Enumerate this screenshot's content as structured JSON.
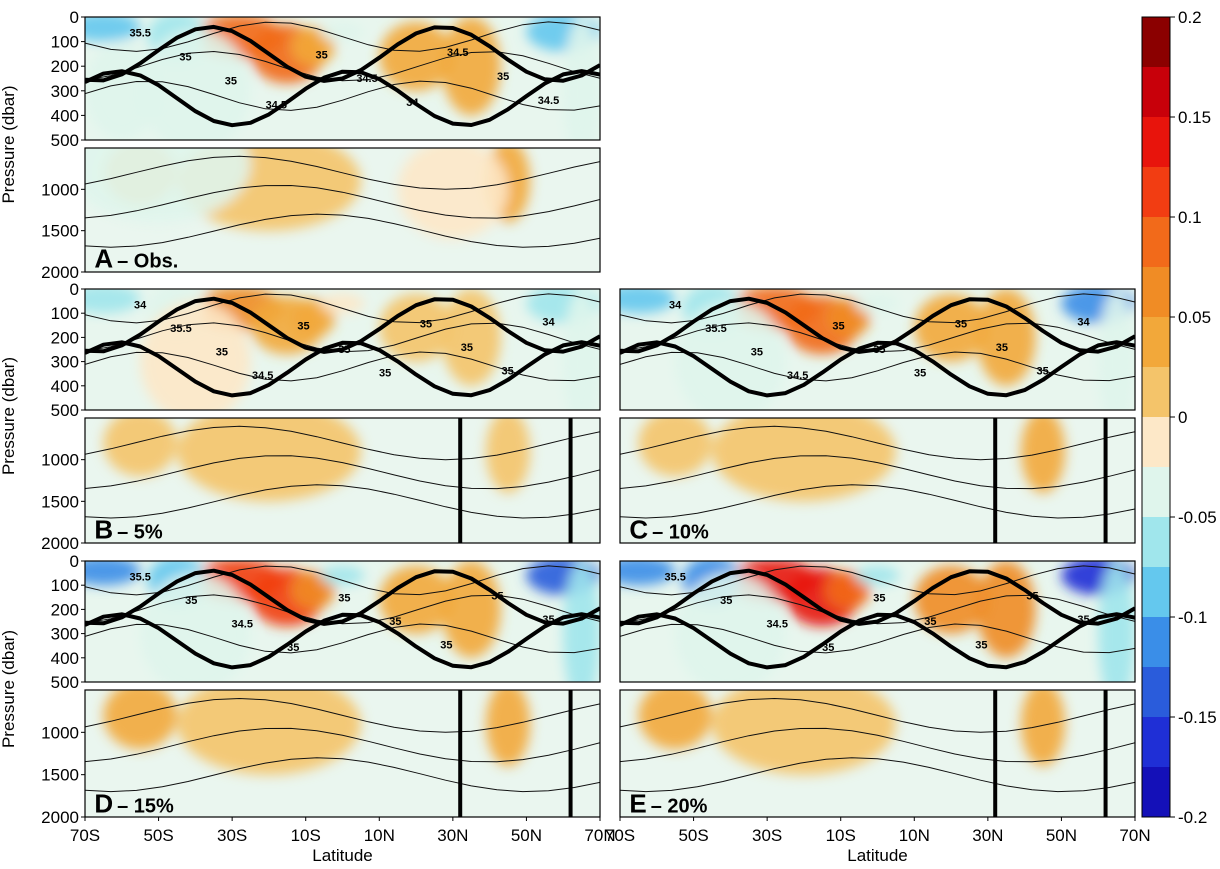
{
  "chart_data": {
    "type": "heatmap",
    "xlabel": "Latitude",
    "ylabel": "Pressure (dbar)",
    "x_ticks": [
      "70S",
      "50S",
      "30S",
      "10S",
      "10N",
      "30N",
      "50N",
      "70N"
    ],
    "y_ticks_upper": [
      "0",
      "100",
      "200",
      "300",
      "400"
    ],
    "y_ticks_lower": [
      "500",
      "1000",
      "1500",
      "2000"
    ],
    "xlim": [
      "70S",
      "70N"
    ],
    "ylim_upper": [
      0,
      500
    ],
    "ylim_lower": [
      500,
      2000
    ],
    "colorbar": {
      "range": [
        -0.2,
        0.2
      ],
      "step": 0.025,
      "tick_labels": [
        "0.2",
        "0.15",
        "0.1",
        "0.05",
        "0",
        "-0.05",
        "-0.1",
        "-0.15",
        "-0.2"
      ],
      "colors": [
        "#8b0000",
        "#c8000a",
        "#e8140c",
        "#f23d12",
        "#f26a1a",
        "#f08c25",
        "#f2a83a",
        "#f4c46a",
        "#fde8c8",
        "#dff5ec",
        "#a0e6ec",
        "#64c8ee",
        "#3a8ee8",
        "#2a5cdb",
        "#1f2fd6",
        "#1410b8"
      ]
    },
    "contour_labels": {
      "A": [
        "35.5",
        "35",
        "35",
        "34.5",
        "35",
        "34.5",
        "34",
        "34.5",
        "35",
        "34.5"
      ],
      "B": [
        "34",
        "35.5",
        "35",
        "34.5",
        "35",
        "35",
        "35",
        "35",
        "35",
        "35",
        "34"
      ],
      "C": [
        "34",
        "35.5",
        "35",
        "34.5",
        "35",
        "35",
        "35",
        "35",
        "35",
        "35",
        "34"
      ],
      "D": [
        "35.5",
        "35",
        "34.5",
        "35",
        "35",
        "35",
        "35",
        "35",
        "35"
      ],
      "E": [
        "35.5",
        "35",
        "34.5",
        "35",
        "35",
        "35",
        "35",
        "35",
        "35"
      ]
    },
    "panels": [
      {
        "id": "A",
        "label": "A",
        "suffix": "– Obs."
      },
      {
        "id": "B",
        "label": "B",
        "suffix": "– 5%"
      },
      {
        "id": "C",
        "label": "C",
        "suffix": "– 10%"
      },
      {
        "id": "D",
        "label": "D",
        "suffix": "– 15%"
      },
      {
        "id": "E",
        "label": "E",
        "suffix": "– 20%"
      }
    ]
  }
}
